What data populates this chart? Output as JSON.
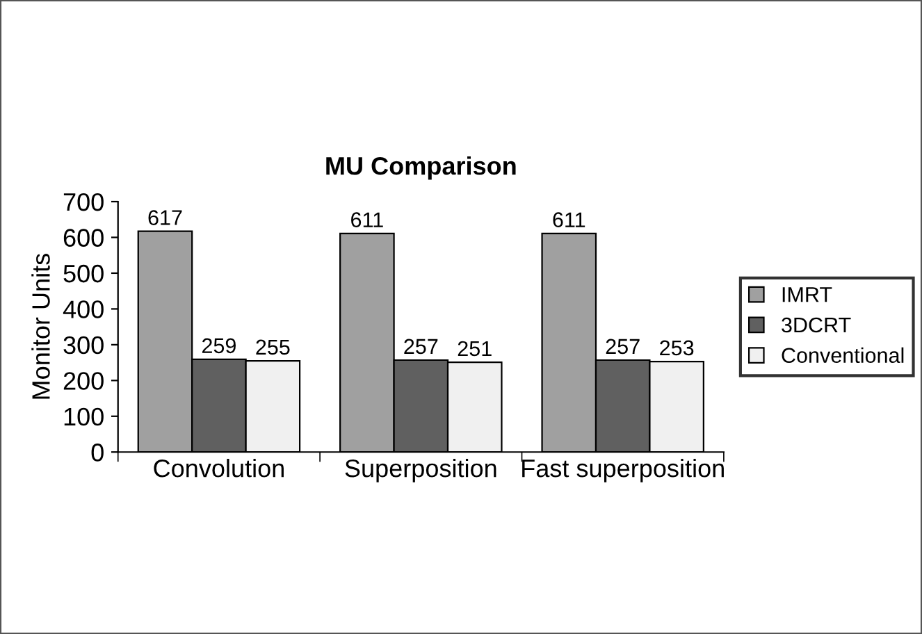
{
  "chart_data": {
    "type": "bar",
    "title": "MU Comparison",
    "ylabel": "Monitor Units",
    "categories": [
      "Convolution",
      "Superposition",
      "Fast superposition"
    ],
    "series": [
      {
        "name": "IMRT",
        "color": "#a0a0a0",
        "values": [
          617,
          611,
          611
        ]
      },
      {
        "name": "3DCRT",
        "color": "#606060",
        "values": [
          259,
          257,
          257
        ]
      },
      {
        "name": "Conventional",
        "color": "#f0f0f0",
        "values": [
          255,
          251,
          253
        ]
      }
    ],
    "ylim": [
      0,
      700
    ],
    "yticks": [
      0,
      100,
      200,
      300,
      400,
      500,
      600,
      700
    ],
    "data_labels": true,
    "grid": false,
    "legend": "right"
  }
}
